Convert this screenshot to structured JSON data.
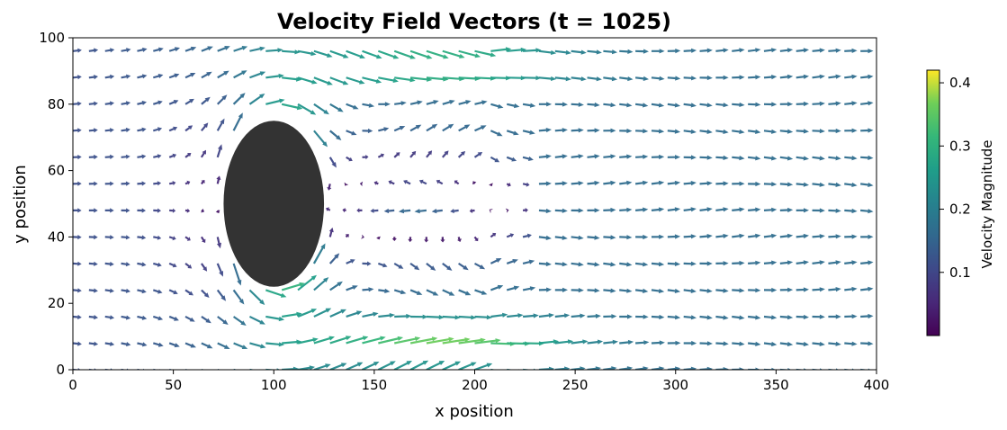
{
  "chart_data": {
    "type": "quiver",
    "title": "Velocity Field Vectors (t = 1025)",
    "xlabel": "x position",
    "ylabel": "y position",
    "xlim": [
      0,
      400
    ],
    "ylim": [
      0,
      100
    ],
    "xticks": [
      "0",
      "50",
      "100",
      "150",
      "200",
      "250",
      "300",
      "350",
      "400"
    ],
    "yticks": [
      "0",
      "20",
      "40",
      "60",
      "80",
      "100"
    ],
    "grid": false,
    "colormap": "viridis",
    "colorbar": {
      "label": "Velocity Magnitude",
      "range": [
        0,
        0.42
      ],
      "ticks": [
        "0.1",
        "0.2",
        "0.3",
        "0.4"
      ]
    },
    "obstacle": {
      "shape": "ellipse",
      "center": [
        100,
        50
      ],
      "radius_x": 25,
      "radius_y": 25,
      "color": "#333333"
    },
    "vector_grid": {
      "x_step": 8,
      "y_rows": [
        0,
        8,
        16,
        24,
        32,
        40,
        48,
        56,
        64,
        72,
        80,
        88,
        96
      ]
    }
  }
}
